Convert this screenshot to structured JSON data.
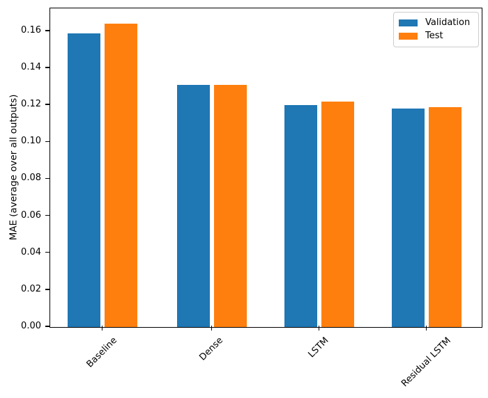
{
  "chart_data": {
    "type": "bar",
    "categories": [
      "Baseline",
      "Dense",
      "LSTM",
      "Residual LSTM"
    ],
    "series": [
      {
        "name": "Validation",
        "color": "#1f77b4",
        "values": [
          0.159,
          0.131,
          0.12,
          0.118
        ]
      },
      {
        "name": "Test",
        "color": "#ff7f0e",
        "values": [
          0.164,
          0.131,
          0.122,
          0.119
        ]
      }
    ],
    "title": "",
    "xlabel": "",
    "ylabel": "MAE (average over all outputs)",
    "ylim": [
      0,
      0.172
    ],
    "yticks": [
      0.0,
      0.02,
      0.04,
      0.06,
      0.08,
      0.1,
      0.12,
      0.14,
      0.16
    ],
    "ytick_labels": [
      "0.00",
      "0.02",
      "0.04",
      "0.06",
      "0.08",
      "0.10",
      "0.12",
      "0.14",
      "0.16"
    ],
    "xtick_rotation": 45,
    "grid": false,
    "legend_position": "upper right"
  },
  "colors": {
    "axis": "#000000",
    "text": "#000000",
    "legend_border": "#cccccc",
    "background": "#ffffff"
  }
}
